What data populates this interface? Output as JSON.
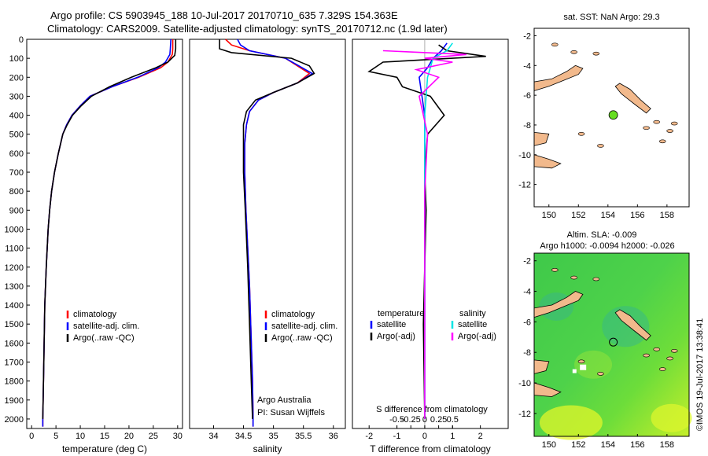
{
  "header": {
    "title_line1": "Argo profile: CS 5903945_188 10-Jul-2017 20170710_635 7.329S 154.363E",
    "title_line2": "Climatology: CARS2009. Satellite-adjusted climatology: synTS_20170712.nc (1.9d later)"
  },
  "stamp": "©IMOS 19-Jul-2017 13:38:41",
  "colors": {
    "climatology": "#ff0000",
    "satellite": "#0000ff",
    "argo": "#000000",
    "sal_satellite": "#00e5e5",
    "sal_argo": "#ff00ff",
    "land": "#f2b98c",
    "marker": "#66dd22"
  },
  "chart_data": [
    {
      "id": "temperature",
      "type": "line",
      "xlabel": "temperature (deg C)",
      "ylabel": "",
      "xlim": [
        -1,
        31
      ],
      "ylim": [
        2050,
        0
      ],
      "xticks": [
        "0",
        "5",
        "10",
        "15",
        "20",
        "25",
        "30"
      ],
      "xtick_values": [
        0,
        5,
        10,
        15,
        20,
        25,
        30
      ],
      "yticks": [
        "0",
        "100",
        "200",
        "300",
        "400",
        "500",
        "600",
        "700",
        "800",
        "900",
        "1000",
        "1100",
        "1200",
        "1300",
        "1400",
        "1500",
        "1600",
        "1700",
        "1800",
        "1900",
        "2000"
      ],
      "ytick_values": [
        0,
        100,
        200,
        300,
        400,
        500,
        600,
        700,
        800,
        900,
        1000,
        1100,
        1200,
        1300,
        1400,
        1500,
        1600,
        1700,
        1800,
        1900,
        2000
      ],
      "legend": [
        "climatology",
        "satellite-adj. clim.",
        "Argo(..raw -QC)"
      ],
      "series": [
        {
          "name": "climatology",
          "color": "#ff0000",
          "x": [
            29.0,
            29.0,
            28.9,
            28.0,
            26.5,
            22.0,
            16.5,
            12.0,
            10.0,
            8.3,
            7.2,
            6.4,
            5.5,
            4.7,
            4.1,
            3.7,
            3.4,
            3.0,
            2.7,
            2.5,
            2.3,
            2.3
          ],
          "y": [
            0,
            50,
            80,
            120,
            150,
            200,
            250,
            300,
            350,
            400,
            450,
            500,
            600,
            700,
            800,
            900,
            1000,
            1200,
            1400,
            1700,
            2000,
            2040
          ]
        },
        {
          "name": "satellite-adj. clim.",
          "color": "#0000ff",
          "x": [
            28.6,
            28.5,
            28.4,
            27.5,
            26.0,
            21.8,
            16.5,
            12.0,
            10.0,
            8.3,
            7.2,
            6.4,
            5.5,
            4.7,
            4.1,
            3.7,
            3.4,
            3.0,
            2.7,
            2.5,
            2.3,
            2.3
          ],
          "y": [
            0,
            50,
            80,
            120,
            150,
            200,
            250,
            300,
            350,
            400,
            450,
            500,
            600,
            700,
            800,
            900,
            1000,
            1200,
            1400,
            1700,
            2000,
            2040
          ]
        },
        {
          "name": "Argo(..raw -QC)",
          "color": "#000000",
          "x": [
            29.6,
            29.6,
            29.4,
            28.0,
            25.5,
            20.5,
            16.0,
            12.3,
            10.2,
            8.4,
            7.3,
            6.4,
            5.5,
            4.7,
            4.1,
            3.7,
            3.4,
            3.0,
            2.7,
            2.5,
            2.3
          ],
          "y": [
            0,
            50,
            85,
            120,
            150,
            200,
            250,
            300,
            350,
            400,
            450,
            500,
            600,
            700,
            800,
            900,
            1000,
            1200,
            1400,
            1700,
            2000
          ]
        }
      ]
    },
    {
      "id": "salinity",
      "type": "line",
      "xlabel": "salinity",
      "xlim": [
        33.6,
        36.2
      ],
      "ylim": [
        2050,
        0
      ],
      "xticks": [
        "34",
        "34.5",
        "35",
        "35.5",
        "36"
      ],
      "xtick_values": [
        34,
        34.5,
        35,
        35.5,
        36
      ],
      "legend": [
        "climatology",
        "satellite-adj. clim.",
        "Argo(..raw -QC)"
      ],
      "annotation": [
        "Argo Australia",
        "PI: Susan Wijffels"
      ],
      "series": [
        {
          "name": "climatology",
          "color": "#ff0000",
          "x": [
            34.2,
            34.3,
            34.6,
            35.2,
            35.6,
            35.4,
            35.0,
            34.75,
            34.6,
            34.55,
            34.52,
            34.52,
            34.54,
            34.57,
            34.6,
            34.62,
            34.65,
            34.66,
            34.66
          ],
          "y": [
            0,
            30,
            60,
            100,
            180,
            230,
            280,
            320,
            380,
            450,
            550,
            700,
            900,
            1100,
            1300,
            1500,
            1800,
            2000,
            2040
          ]
        },
        {
          "name": "satellite-adj. clim.",
          "color": "#0000ff",
          "x": [
            34.4,
            34.45,
            34.6,
            35.2,
            35.65,
            35.4,
            35.0,
            34.75,
            34.6,
            34.55,
            34.52,
            34.52,
            34.54,
            34.57,
            34.6,
            34.62,
            34.65,
            34.66,
            34.66
          ],
          "y": [
            0,
            30,
            60,
            100,
            180,
            230,
            280,
            320,
            380,
            450,
            550,
            700,
            900,
            1100,
            1300,
            1500,
            1800,
            2000,
            2040
          ]
        },
        {
          "name": "Argo(..raw -QC)",
          "color": "#000000",
          "x": [
            34.1,
            34.1,
            34.3,
            35.3,
            35.6,
            35.68,
            35.4,
            35.0,
            34.7,
            34.55,
            34.5,
            34.5,
            34.5,
            34.53,
            34.57,
            34.6,
            34.63,
            34.65
          ],
          "y": [
            0,
            50,
            70,
            100,
            140,
            180,
            230,
            280,
            320,
            380,
            450,
            550,
            700,
            900,
            1200,
            1500,
            1800,
            2000
          ]
        }
      ]
    },
    {
      "id": "difference",
      "type": "line",
      "xlabel": "T difference from climatology",
      "xlabel_top": "S difference from climatology",
      "xlim": [
        -2.6,
        3.0
      ],
      "ylim": [
        2050,
        0
      ],
      "xticks": [
        "-2",
        "-1",
        "0",
        "1",
        "2"
      ],
      "xtick_values": [
        -2,
        -1,
        0,
        1,
        2
      ],
      "xticks_top": [
        "-0.5",
        "-0.25",
        "0",
        "0.25",
        "0.5"
      ],
      "xticks_top_values": [
        -1,
        -0.5,
        0,
        0.5,
        1
      ],
      "legend_left_title": "temperature",
      "legend_right_title": "salinity",
      "legend": [
        "satellite",
        "Argo(-adj)",
        "satellite",
        "Argo(-adj)"
      ],
      "series": [
        {
          "name": "satellite",
          "quantity": "temperature",
          "color": "#0000ff",
          "x": [
            0.8,
            0.6,
            0.3,
            0.1,
            -0.2,
            -0.1,
            0.0,
            0.0,
            0.0,
            0.0,
            0.0,
            0.0
          ],
          "y": [
            20,
            60,
            100,
            150,
            200,
            300,
            400,
            600,
            800,
            1200,
            1600,
            2000
          ]
        },
        {
          "name": "Argo(-adj)",
          "quantity": "temperature",
          "color": "#000000",
          "x": [
            0.5,
            0.8,
            2.2,
            -1.5,
            -2.0,
            -1.0,
            -0.8,
            0.2,
            0.7,
            0.1,
            0.0,
            0.05,
            0.0,
            -0.05,
            0.0
          ],
          "y": [
            30,
            60,
            90,
            120,
            170,
            200,
            250,
            300,
            400,
            500,
            700,
            900,
            1200,
            1500,
            2000
          ]
        },
        {
          "name": "satellite",
          "quantity": "salinity",
          "color": "#00e5e5",
          "x": [
            1.0,
            0.8,
            0.3,
            0.1,
            0.0,
            0.0,
            0.0,
            0.0
          ],
          "y": [
            20,
            60,
            100,
            200,
            400,
            800,
            1400,
            2000
          ]
        },
        {
          "name": "Argo(-adj)",
          "quantity": "salinity",
          "color": "#ff00ff",
          "x": [
            -1.5,
            1.5,
            0.0,
            1.0,
            -0.3,
            0.5,
            -0.2,
            0.1,
            0.0,
            0.0,
            0.0
          ],
          "y": [
            60,
            80,
            100,
            120,
            160,
            200,
            300,
            500,
            800,
            1400,
            2000
          ]
        }
      ]
    },
    {
      "id": "sst_map",
      "type": "map",
      "title": "sat. SST: NaN Argo: 29.3",
      "xlim": [
        149,
        159.5
      ],
      "ylim": [
        -13.5,
        -1.5
      ],
      "xticks": [
        "150",
        "152",
        "154",
        "156",
        "158"
      ],
      "xtick_values": [
        150,
        152,
        154,
        156,
        158
      ],
      "yticks": [
        "-2",
        "-4",
        "-6",
        "-8",
        "-10",
        "-12"
      ],
      "ytick_values": [
        -2,
        -4,
        -6,
        -8,
        -10,
        -12
      ],
      "marker": {
        "lon": 154.363,
        "lat": -7.329
      }
    },
    {
      "id": "sla_map",
      "type": "map",
      "title_line1": "Altim. SLA: -0.009",
      "title_line2": "Argo h1000: -0.0094 h2000: -0.026",
      "xlim": [
        149,
        159.5
      ],
      "ylim": [
        -13.5,
        -1.5
      ],
      "xticks": [
        "150",
        "152",
        "154",
        "156",
        "158"
      ],
      "xtick_values": [
        150,
        152,
        154,
        156,
        158
      ],
      "yticks": [
        "-2",
        "-4",
        "-6",
        "-8",
        "-10",
        "-12"
      ],
      "ytick_values": [
        -2,
        -4,
        -6,
        -8,
        -10,
        -12
      ],
      "marker": {
        "lon": 154.363,
        "lat": -7.329
      }
    }
  ]
}
